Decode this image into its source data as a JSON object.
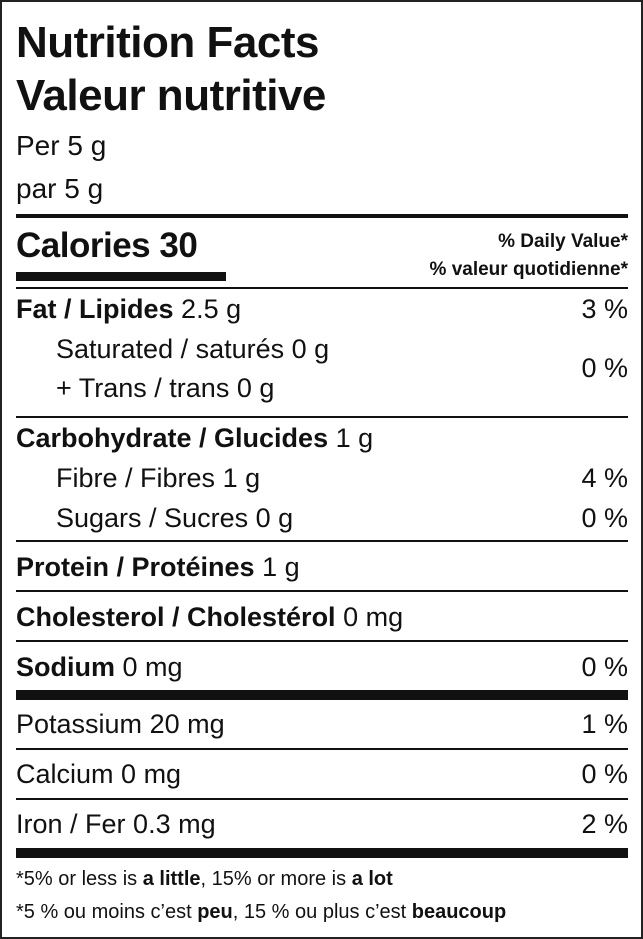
{
  "title_en": "Nutrition Facts",
  "title_fr": "Valeur nutritive",
  "serving_en": "Per 5 g",
  "serving_fr": "par 5 g",
  "calories": {
    "label": "Calories",
    "value": "30"
  },
  "dv_en": "% Daily Value*",
  "dv_fr": "% valeur quotidienne*",
  "rows": {
    "fat": {
      "label": "Fat / Lipides",
      "amount": "2.5 g",
      "dv": "3 %"
    },
    "sat": {
      "label": "Saturated / saturés",
      "amount": "0 g"
    },
    "trans": {
      "label": "+ Trans / trans",
      "amount": "0 g"
    },
    "sat_trans_dv": "0 %",
    "carb": {
      "label": "Carbohydrate / Glucides",
      "amount": "1 g"
    },
    "fibre": {
      "label": "Fibre / Fibres",
      "amount": "1 g",
      "dv": "4 %"
    },
    "sugars": {
      "label": "Sugars / Sucres",
      "amount": "0 g",
      "dv": "0 %"
    },
    "protein": {
      "label": "Protein / Protéines",
      "amount": "1 g"
    },
    "cholesterol": {
      "label": "Cholesterol / Cholestérol",
      "amount": "0 mg"
    },
    "sodium": {
      "label": "Sodium",
      "amount": "0 mg",
      "dv": "0 %"
    },
    "potassium": {
      "label": "Potassium",
      "amount": "20 mg",
      "dv": "1 %"
    },
    "calcium": {
      "label": "Calcium",
      "amount": "0 mg",
      "dv": "0 %"
    },
    "iron": {
      "label": "Iron / Fer",
      "amount": "0.3 mg",
      "dv": "2 %"
    }
  },
  "footnote_en": {
    "a": "*5% or less is ",
    "b": "a little",
    ",c": "",
    "c": ", 15% or more is ",
    "d": "a lot"
  },
  "footnote_fr": {
    "a": "*5 % ou moins c’est ",
    "b": "peu",
    "c": ", 15 % ou plus c’est ",
    "d": "beaucoup"
  }
}
